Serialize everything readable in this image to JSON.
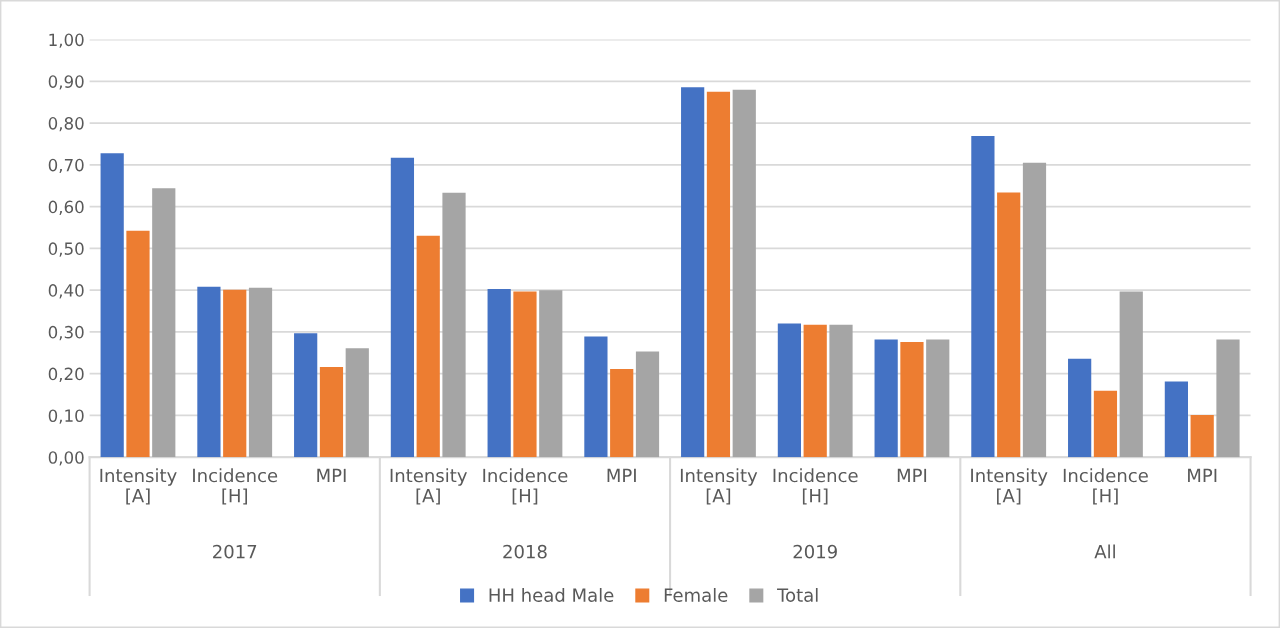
{
  "chart_data": {
    "type": "bar",
    "categories": [
      "Intensity\n[A]",
      "Incidence\n[H]",
      "MPI",
      "Intensity\n[A]",
      "Incidence\n[H]",
      "MPI",
      "Intensity\n[A]",
      "Incidence\n[H]",
      "MPI",
      "Intensity\n[A]",
      "Incidence\n[H]",
      "MPI"
    ],
    "series": [
      {
        "name": "HH head Male",
        "color": "#4472c4",
        "values": [
          0.728,
          0.408,
          0.297,
          0.717,
          0.403,
          0.289,
          0.886,
          0.32,
          0.282,
          0.769,
          0.236,
          0.181
        ]
      },
      {
        "name": "Female",
        "color": "#ed7d31",
        "values": [
          0.542,
          0.401,
          0.216,
          0.53,
          0.397,
          0.211,
          0.875,
          0.317,
          0.276,
          0.634,
          0.159,
          0.101
        ]
      },
      {
        "name": "Total",
        "color": "#a5a5a5",
        "values": [
          0.644,
          0.406,
          0.261,
          0.633,
          0.4,
          0.253,
          0.88,
          0.317,
          0.282,
          0.705,
          0.397,
          0.282
        ]
      }
    ],
    "annotations": [
      "2017",
      "2018",
      "2019",
      "All"
    ],
    "ylim": [
      0,
      1
    ],
    "yticks": [
      {
        "value": 0,
        "label": "0,00"
      },
      {
        "value": 0.1,
        "label": "0,10"
      },
      {
        "value": 0.2,
        "label": "0,20"
      },
      {
        "value": 0.3,
        "label": "0,30"
      },
      {
        "value": 0.4,
        "label": "0,40"
      },
      {
        "value": 0.5,
        "label": "0,50"
      },
      {
        "value": 0.6,
        "label": "0,60"
      },
      {
        "value": 0.7,
        "label": "0,70"
      },
      {
        "value": 0.8,
        "label": "0,80"
      },
      {
        "value": 0.9,
        "label": "0,90"
      },
      {
        "value": 1,
        "label": "1,00"
      }
    ],
    "grid": "y",
    "legend": "bottom"
  }
}
